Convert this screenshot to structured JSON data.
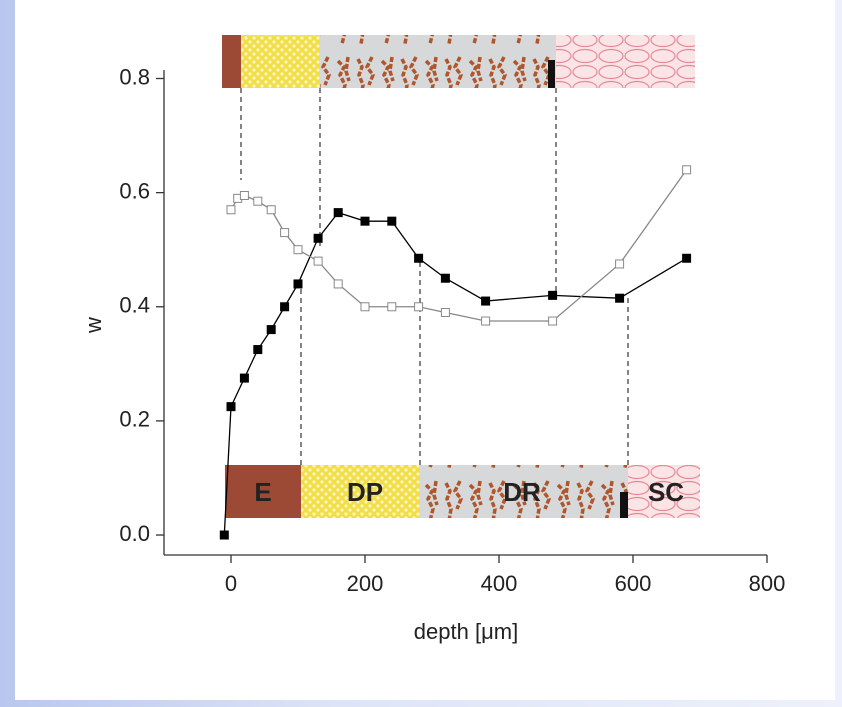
{
  "chart_data": {
    "type": "line",
    "xlabel": "depth [μm]",
    "ylabel": "w",
    "xlim": [
      -100,
      800
    ],
    "xticks": [
      0,
      200,
      400,
      600,
      800
    ],
    "ylim": [
      -0.035,
      0.885
    ],
    "yticks": [
      {
        "value": 0,
        "label": "0.0"
      },
      0.2,
      0.4,
      0.6,
      0.8
    ],
    "layers": [
      "E",
      "DP",
      "DR",
      "SC"
    ],
    "series": [
      {
        "color": "#000000",
        "marker": "filled-square",
        "x": [
          -10,
          0,
          20,
          40,
          60,
          80,
          100,
          130,
          160,
          200,
          240,
          280,
          320,
          380,
          480,
          580,
          680
        ],
        "values": [
          0.0,
          0.225,
          0.275,
          0.325,
          0.36,
          0.4,
          0.44,
          0.52,
          0.565,
          0.55,
          0.55,
          0.485,
          0.45,
          0.41,
          0.42,
          0.415,
          0.485
        ]
      },
      {
        "color": "#888888",
        "marker": "open-square",
        "x": [
          0,
          10,
          20,
          40,
          60,
          80,
          100,
          130,
          160,
          200,
          240,
          280,
          320,
          380,
          480,
          580,
          680
        ],
        "values": [
          0.57,
          0.59,
          0.595,
          0.585,
          0.57,
          0.53,
          0.5,
          0.48,
          0.44,
          0.4,
          0.4,
          0.4,
          0.39,
          0.375,
          0.375,
          0.475,
          0.64
        ]
      }
    ]
  }
}
